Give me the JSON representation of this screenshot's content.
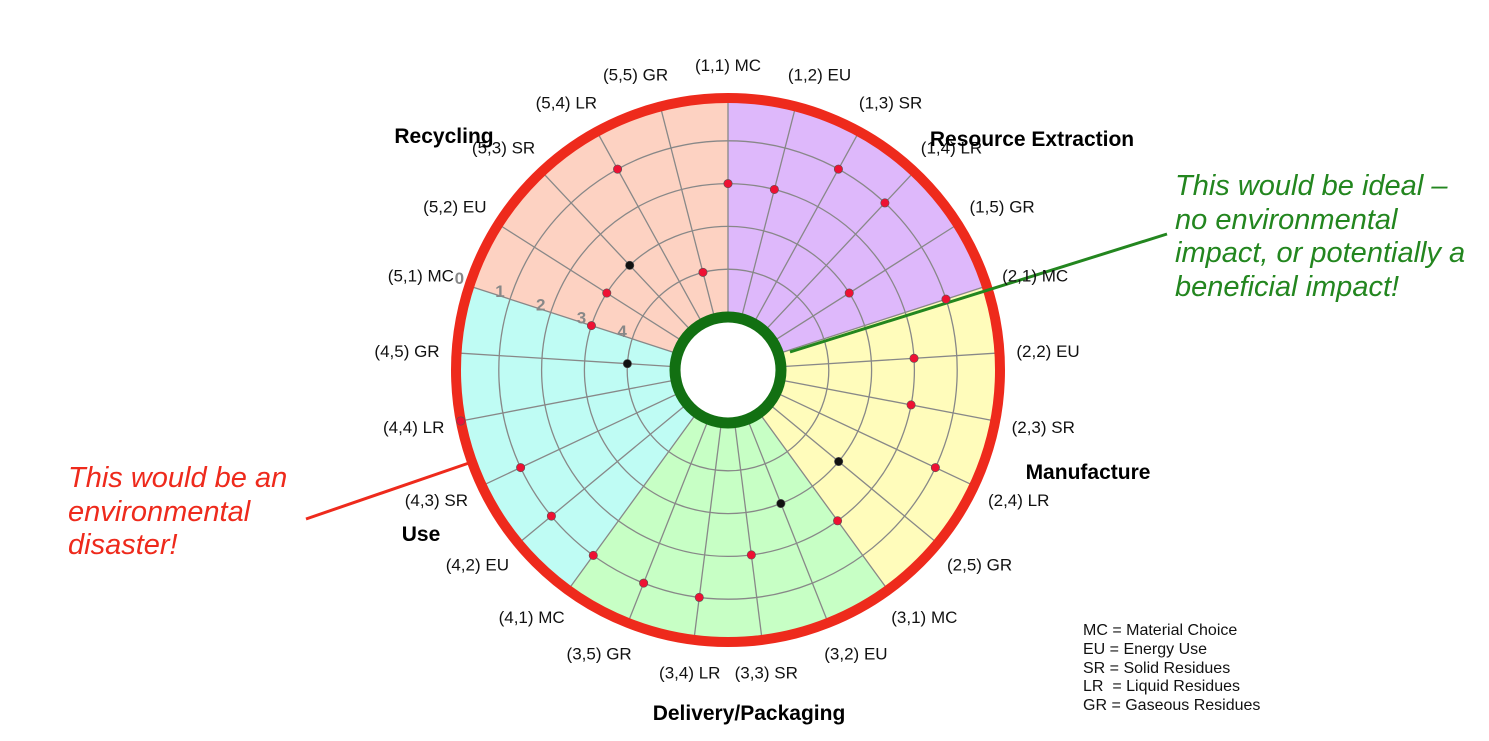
{
  "chart_data": {
    "type": "polar-scorecard",
    "rings": [
      "0",
      "1",
      "2",
      "3",
      "4"
    ],
    "stages": [
      {
        "name": "Resource Extraction",
        "color": "#deb8fb",
        "spokes": [
          {
            "label": "(1,1) MC",
            "value": 2,
            "dot": "red"
          },
          {
            "label": "(1,2) EU",
            "value": 2,
            "dot": "red"
          },
          {
            "label": "(1,3) SR",
            "value": 1,
            "dot": "red"
          },
          {
            "label": "(1,4) LR",
            "value": 1,
            "dot": "red"
          },
          {
            "label": "(1,5) GR",
            "value": 3,
            "dot": "red"
          }
        ]
      },
      {
        "name": "Manufacture",
        "color": "#fffcbb",
        "spokes": [
          {
            "label": "(2,1) MC",
            "value": 1,
            "dot": "red"
          },
          {
            "label": "(2,2) EU",
            "value": 2,
            "dot": "red"
          },
          {
            "label": "(2,3) SR",
            "value": 2,
            "dot": "red"
          },
          {
            "label": "(2,4) LR",
            "value": 1,
            "dot": "red"
          },
          {
            "label": "(2,5) GR",
            "value": 3,
            "dot": "black"
          }
        ]
      },
      {
        "name": "Delivery/Packaging",
        "color": "#c7ffc5",
        "spokes": [
          {
            "label": "(3,1) MC",
            "value": 2,
            "dot": "red"
          },
          {
            "label": "(3,2) EU",
            "value": 3,
            "dot": "black"
          },
          {
            "label": "(3,3) SR",
            "value": 2,
            "dot": "red"
          },
          {
            "label": "(3,4) LR",
            "value": 1,
            "dot": "red"
          },
          {
            "label": "(3,5) GR",
            "value": 1,
            "dot": "red"
          }
        ]
      },
      {
        "name": "Use",
        "color": "#bffcf4",
        "spokes": [
          {
            "label": "(4,1) MC",
            "value": 1,
            "dot": "red"
          },
          {
            "label": "(4,2) EU",
            "value": 1,
            "dot": "red"
          },
          {
            "label": "(4,3) SR",
            "value": 1,
            "dot": "red"
          },
          {
            "label": "(4,4) LR",
            "value": 0,
            "dot": "red"
          },
          {
            "label": "(4,5) GR",
            "value": 4,
            "dot": "black"
          }
        ]
      },
      {
        "name": "Recycling",
        "color": "#fdd2c2",
        "spokes": [
          {
            "label": "(5,1) MC",
            "value": 3,
            "dot": "red"
          },
          {
            "label": "(5,2) EU",
            "value": 3,
            "dot": "red"
          },
          {
            "label": "(5,3) SR",
            "value": 3,
            "dot": "black"
          },
          {
            "label": "(5,4) LR",
            "value": 1,
            "dot": "red"
          },
          {
            "label": "(5,5) GR",
            "value": 4,
            "dot": "red"
          }
        ]
      }
    ],
    "colors": {
      "outer_ring": "#ee2a1c",
      "inner_ring": "#127012",
      "grid": "#888888",
      "dot_red": "#ee1133",
      "dot_black": "#111111"
    }
  },
  "annotations": {
    "ideal": "This would be ideal – no environmental impact, or potentially a beneficial impact!",
    "ideal_color": "#23861f",
    "disaster": "This would be an environmental disaster!",
    "disaster_color": "#ee2a1c"
  },
  "legend": [
    "MC = Material Choice",
    "EU = Energy Use",
    "SR = Solid Residues",
    "LR  = Liquid Residues",
    "GR = Gaseous Residues"
  ]
}
